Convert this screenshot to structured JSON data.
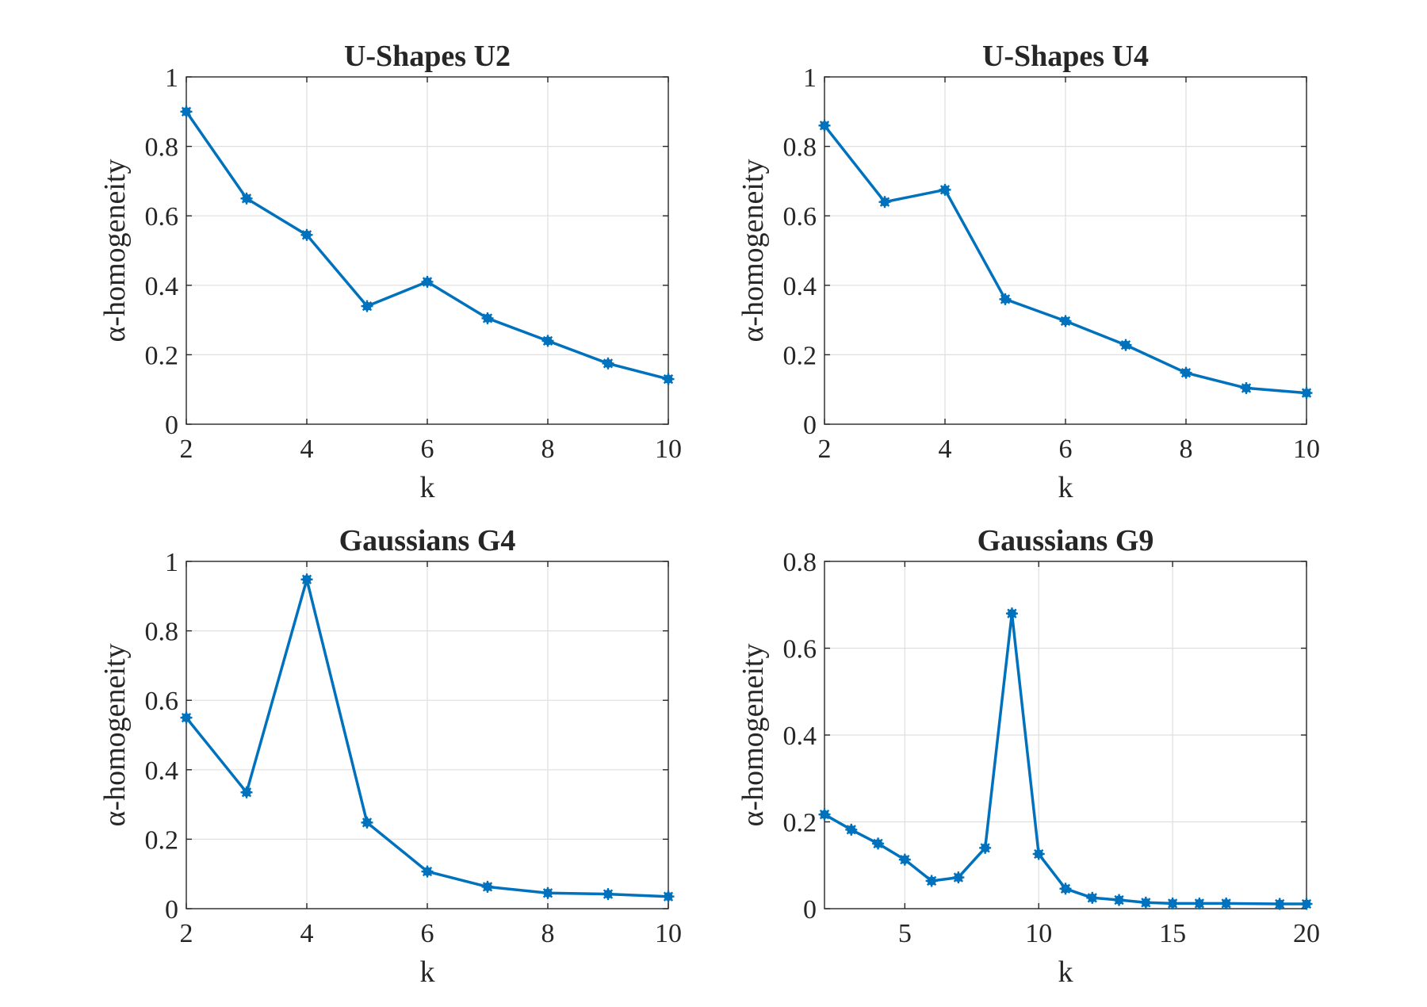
{
  "colors": {
    "series": "#0072BD"
  },
  "marker": "asterisk-dot",
  "chart_data": [
    {
      "type": "line",
      "title": "U-Shapes U2",
      "xlabel": "k",
      "ylabel": "α-homogeneity",
      "xlim": [
        2,
        10
      ],
      "ylim": [
        0,
        1
      ],
      "xticks": [
        2,
        4,
        6,
        8,
        10
      ],
      "yticks": [
        0,
        0.2,
        0.4,
        0.6,
        0.8,
        1
      ],
      "xtick_labels": [
        "2",
        "4",
        "6",
        "8",
        "10"
      ],
      "ytick_labels": [
        "0",
        "0.2",
        "0.4",
        "0.6",
        "0.8",
        "1"
      ],
      "grid": true,
      "x": [
        2,
        3,
        4,
        5,
        6,
        7,
        8,
        9,
        10
      ],
      "y": [
        0.9,
        0.65,
        0.545,
        0.34,
        0.41,
        0.305,
        0.24,
        0.175,
        0.13
      ]
    },
    {
      "type": "line",
      "title": "U-Shapes U4",
      "xlabel": "k",
      "ylabel": "α-homogeneity",
      "xlim": [
        2,
        10
      ],
      "ylim": [
        0,
        1
      ],
      "xticks": [
        2,
        4,
        6,
        8,
        10
      ],
      "yticks": [
        0,
        0.2,
        0.4,
        0.6,
        0.8,
        1
      ],
      "xtick_labels": [
        "2",
        "4",
        "6",
        "8",
        "10"
      ],
      "ytick_labels": [
        "0",
        "0.2",
        "0.4",
        "0.6",
        "0.8",
        "1"
      ],
      "grid": true,
      "x": [
        2,
        3,
        4,
        5,
        6,
        7,
        8,
        9,
        10
      ],
      "y": [
        0.86,
        0.64,
        0.675,
        0.36,
        0.297,
        0.228,
        0.148,
        0.104,
        0.09
      ]
    },
    {
      "type": "line",
      "title": "Gaussians G4",
      "xlabel": "k",
      "ylabel": "α-homogeneity",
      "xlim": [
        2,
        10
      ],
      "ylim": [
        0,
        1
      ],
      "xticks": [
        2,
        4,
        6,
        8,
        10
      ],
      "yticks": [
        0,
        0.2,
        0.4,
        0.6,
        0.8,
        1
      ],
      "xtick_labels": [
        "2",
        "4",
        "6",
        "8",
        "10"
      ],
      "ytick_labels": [
        "0",
        "0.2",
        "0.4",
        "0.6",
        "0.8",
        "1"
      ],
      "grid": true,
      "x": [
        2,
        3,
        4,
        5,
        6,
        7,
        8,
        9,
        10
      ],
      "y": [
        0.55,
        0.335,
        0.948,
        0.248,
        0.107,
        0.063,
        0.045,
        0.042,
        0.035
      ]
    },
    {
      "type": "line",
      "title": "Gaussians G9",
      "xlabel": "k",
      "ylabel": "α-homogeneity",
      "xlim": [
        2,
        20
      ],
      "ylim": [
        0,
        0.8
      ],
      "xticks": [
        5,
        10,
        15,
        20
      ],
      "yticks": [
        0,
        0.2,
        0.4,
        0.6,
        0.8
      ],
      "xtick_labels": [
        "5",
        "10",
        "15",
        "20"
      ],
      "ytick_labels": [
        "0",
        "0.2",
        "0.4",
        "0.6",
        "0.8"
      ],
      "grid": true,
      "x": [
        2,
        3,
        4,
        5,
        6,
        7,
        8,
        9,
        10,
        11,
        12,
        13,
        14,
        15,
        16,
        17,
        19,
        20
      ],
      "y": [
        0.217,
        0.182,
        0.15,
        0.113,
        0.064,
        0.072,
        0.14,
        0.68,
        0.126,
        0.046,
        0.025,
        0.02,
        0.014,
        0.012,
        0.012,
        0.012,
        0.011,
        0.011
      ]
    }
  ]
}
